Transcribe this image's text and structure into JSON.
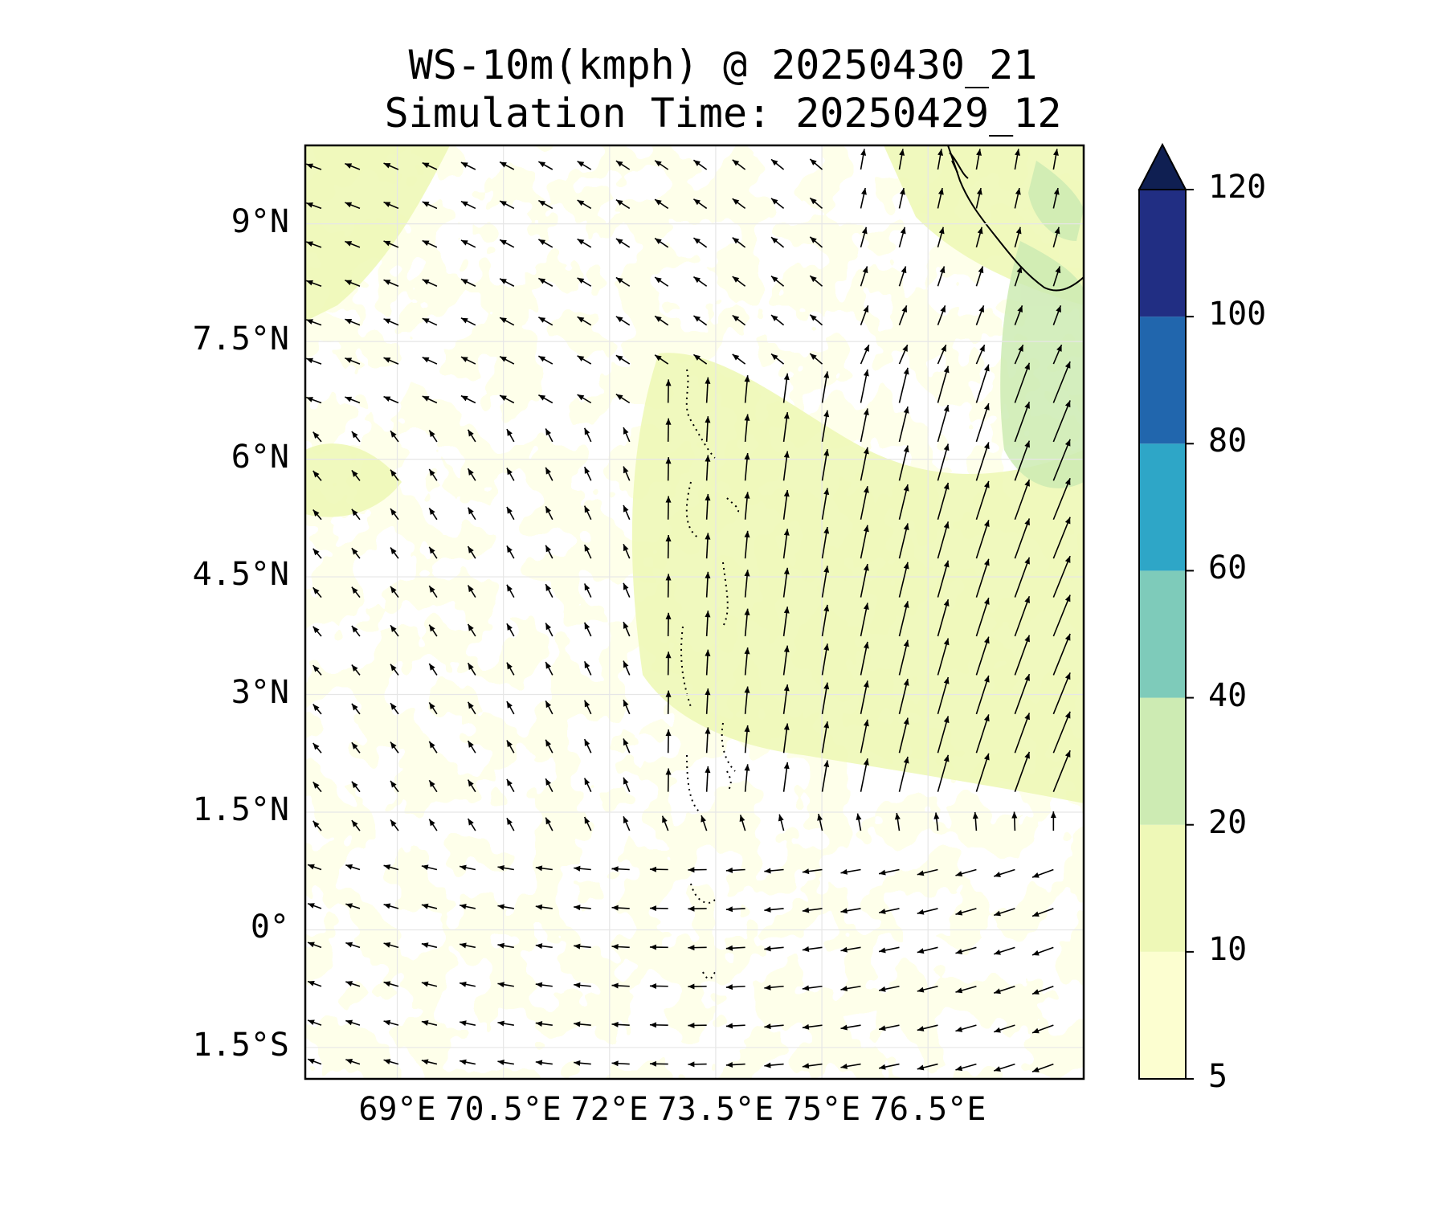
{
  "title_line1": "WS-10m(kmph) @ 20250430_21",
  "title_line2": "Simulation Time: 20250429_12",
  "map": {
    "lon_range": [
      67.7,
      78.7
    ],
    "lat_range": [
      -1.9,
      10.0
    ],
    "lat_ticks": [
      {
        "value": 9.0,
        "label": "9°N"
      },
      {
        "value": 7.5,
        "label": "7.5°N"
      },
      {
        "value": 6.0,
        "label": "6°N"
      },
      {
        "value": 4.5,
        "label": "4.5°N"
      },
      {
        "value": 3.0,
        "label": "3°N"
      },
      {
        "value": 1.5,
        "label": "1.5°N"
      },
      {
        "value": 0.0,
        "label": "0°"
      },
      {
        "value": -1.5,
        "label": "1.5°S"
      }
    ],
    "lon_ticks": [
      {
        "value": 69.0,
        "label": "69°E"
      },
      {
        "value": 70.5,
        "label": "70.5°E"
      },
      {
        "value": 72.0,
        "label": "72°E"
      },
      {
        "value": 73.5,
        "label": "73.5°E"
      },
      {
        "value": 75.0,
        "label": "75°E"
      },
      {
        "value": 76.5,
        "label": "76.5°E"
      }
    ],
    "gridlines": true,
    "variable": "10 m wind speed (kmph), filled contours with wind vectors",
    "features": [
      "Maldives atolls (dotted outline)",
      "India / Sri Lanka coastline (top-right corner)"
    ]
  },
  "colorbar": {
    "levels": [
      5,
      10,
      20,
      40,
      60,
      80,
      100,
      120
    ],
    "colors": [
      "#fcfed0",
      "#eef8b7",
      "#cdebb3",
      "#7ecbba",
      "#2ea6c7",
      "#2166ad",
      "#212e83"
    ],
    "extend_color": "#0f1f52",
    "extend": "max"
  }
}
